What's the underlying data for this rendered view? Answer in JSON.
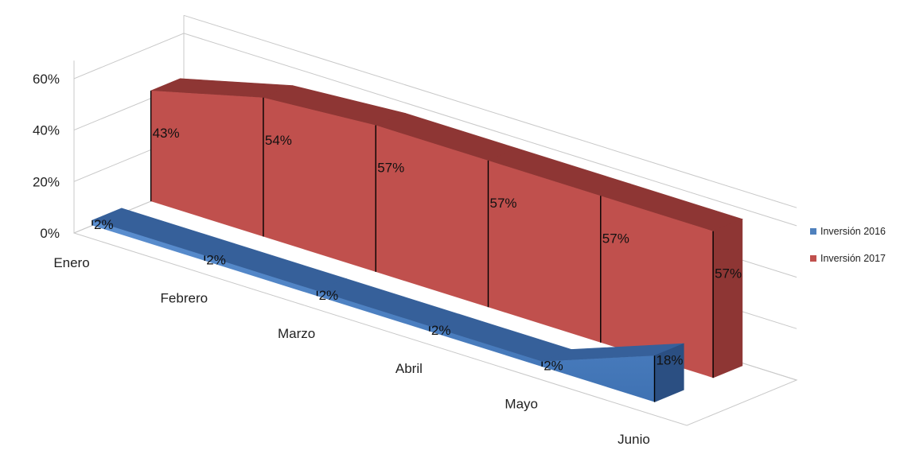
{
  "chart_data": {
    "type": "area",
    "subtype": "3d",
    "categories": [
      "Enero",
      "Febrero",
      "Marzo",
      "Abril",
      "Mayo",
      "Junio"
    ],
    "series": [
      {
        "name": "Inversión  2016",
        "values": [
          2,
          2,
          2,
          2,
          2,
          18
        ],
        "labels": [
          "2%",
          "2%",
          "2%",
          "2%",
          "2%",
          "18%"
        ],
        "color": "#4F81BD"
      },
      {
        "name": "Inversión 2017",
        "values": [
          43,
          54,
          57,
          57,
          57,
          57
        ],
        "labels": [
          "43%",
          "54%",
          "57%",
          "57%",
          "57%",
          "57%"
        ],
        "color": "#C0504D"
      }
    ],
    "y_ticks": [
      "0%",
      "20%",
      "40%",
      "60%"
    ],
    "ylim": [
      0,
      60
    ],
    "grid": true,
    "legend_position": "right"
  }
}
